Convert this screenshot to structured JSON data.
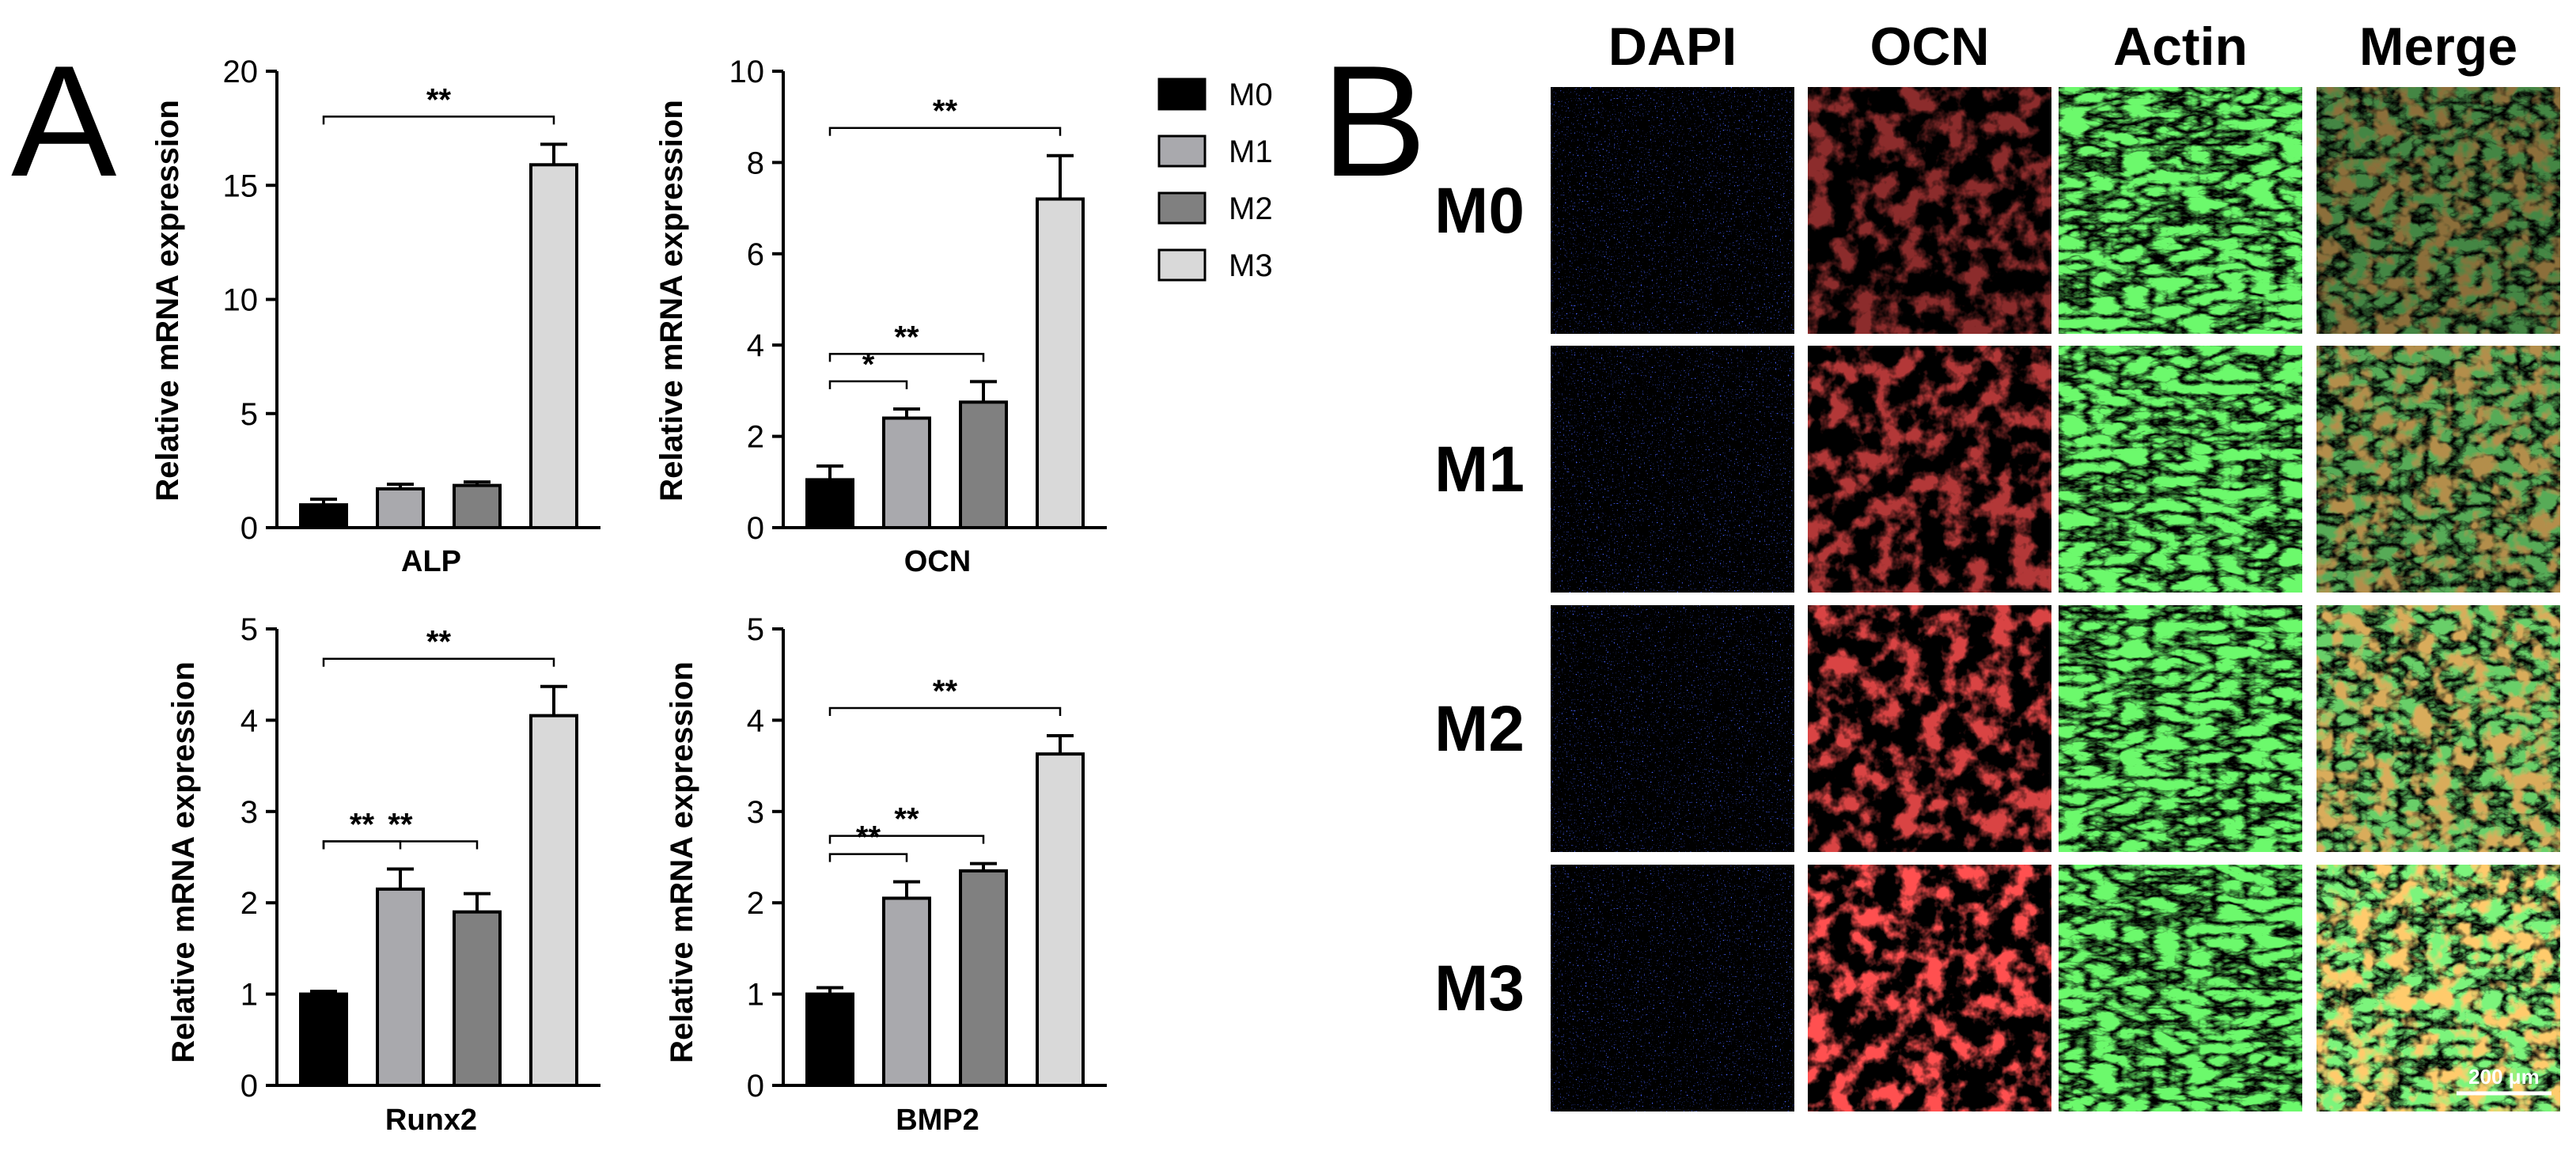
{
  "panel_labels": {
    "a": "A",
    "b": "B"
  },
  "chart_data": [
    {
      "type": "bar",
      "title": "",
      "xlabel": "ALP",
      "ylabel": "Relative mRNA expression",
      "categories": [
        "M0",
        "M1",
        "M2",
        "M3"
      ],
      "values": [
        1.0,
        1.7,
        1.85,
        15.9
      ],
      "errors": [
        0.25,
        0.2,
        0.15,
        0.9
      ],
      "ylim": [
        0,
        20
      ],
      "yticks": [
        "0",
        "5",
        "10",
        "15",
        "20"
      ],
      "significance": [
        {
          "from": "M0",
          "to": "M3",
          "label": "**"
        }
      ]
    },
    {
      "type": "bar",
      "title": "",
      "xlabel": "OCN",
      "ylabel": "Relative mRNA expression",
      "categories": [
        "M0",
        "M1",
        "M2",
        "M3"
      ],
      "values": [
        1.05,
        2.4,
        2.75,
        7.2
      ],
      "errors": [
        0.3,
        0.2,
        0.45,
        0.95
      ],
      "ylim": [
        0,
        10
      ],
      "yticks": [
        "0",
        "2",
        "4",
        "6",
        "8",
        "10"
      ],
      "significance": [
        {
          "from": "M0",
          "to": "M1",
          "label": "*"
        },
        {
          "from": "M0",
          "to": "M2",
          "label": "**"
        },
        {
          "from": "M0",
          "to": "M3",
          "label": "**"
        }
      ]
    },
    {
      "type": "bar",
      "title": "",
      "xlabel": "Runx2",
      "ylabel": "Relative mRNA expression",
      "categories": [
        "M0",
        "M1",
        "M2",
        "M3"
      ],
      "values": [
        1.0,
        2.15,
        1.9,
        4.05
      ],
      "errors": [
        0.03,
        0.22,
        0.2,
        0.32
      ],
      "ylim": [
        0,
        5
      ],
      "yticks": [
        "0",
        "1",
        "2",
        "3",
        "4",
        "5"
      ],
      "significance": [
        {
          "from": "M0",
          "to": "M1",
          "label": "**"
        },
        {
          "from": "M0",
          "to": "M2",
          "label": "**"
        },
        {
          "from": "M0",
          "to": "M3",
          "label": "**"
        }
      ]
    },
    {
      "type": "bar",
      "title": "",
      "xlabel": "BMP2",
      "ylabel": "Relative mRNA expression",
      "categories": [
        "M0",
        "M1",
        "M2",
        "M3"
      ],
      "values": [
        1.0,
        2.05,
        2.35,
        3.63
      ],
      "errors": [
        0.07,
        0.18,
        0.08,
        0.2
      ],
      "ylim": [
        0,
        5
      ],
      "yticks": [
        "0",
        "1",
        "2",
        "3",
        "4",
        "5"
      ],
      "significance": [
        {
          "from": "M0",
          "to": "M1",
          "label": "**"
        },
        {
          "from": "M0",
          "to": "M2",
          "label": "**"
        },
        {
          "from": "M0",
          "to": "M3",
          "label": "**"
        }
      ]
    }
  ],
  "legend": {
    "placement": "right",
    "items": [
      {
        "label": "M0",
        "color": "#000000"
      },
      {
        "label": "M1",
        "color": "#a9a9ad"
      },
      {
        "label": "M2",
        "color": "#808080"
      },
      {
        "label": "M3",
        "color": "#d9d9d9"
      }
    ]
  },
  "microscopy": {
    "columns": [
      "DAPI",
      "OCN",
      "Actin",
      "Merge"
    ],
    "rows": [
      "M0",
      "M1",
      "M2",
      "M3"
    ],
    "scale_bar": "200 μm",
    "stains": {
      "DAPI": "#1a2cff",
      "OCN": "#ff2020",
      "Actin": "#22dd22",
      "Merge": "#c8a030"
    }
  }
}
